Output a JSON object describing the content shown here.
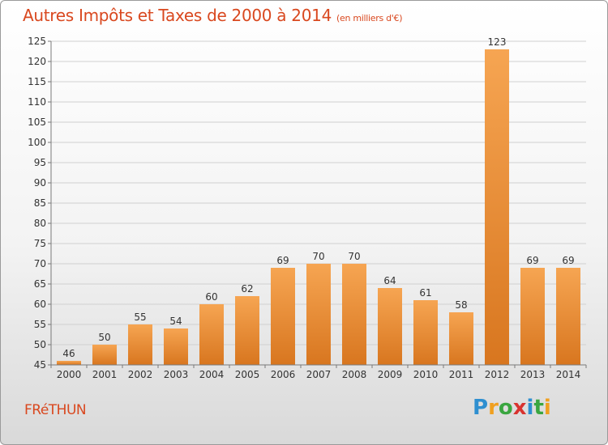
{
  "header": {
    "title": "Autres Impôts et Taxes de 2000 à 2014",
    "unit": "(en milliers d'€)"
  },
  "footer": {
    "town": "FRéTHUN",
    "logo_letters": [
      "P",
      "r",
      "o",
      "x",
      "i",
      "t",
      "i"
    ],
    "logo_colors": [
      "#2e8fd0",
      "#f0a020",
      "#3aa640",
      "#d8332f",
      "#2e8fd0",
      "#3aa640",
      "#f0a020"
    ]
  },
  "colors": {
    "title": "#d9481f",
    "bar_light": "#f6a552",
    "bar_dark": "#d8761f",
    "grid": "#d0d0d0",
    "axis": "#7a7a7a"
  },
  "chart_data": {
    "type": "bar",
    "title": "Autres Impôts et Taxes de 2000 à 2014",
    "subtitle": "(en milliers d'€)",
    "xlabel": "",
    "ylabel": "",
    "categories": [
      "2000",
      "2001",
      "2002",
      "2003",
      "2004",
      "2005",
      "2006",
      "2007",
      "2008",
      "2009",
      "2010",
      "2011",
      "2012",
      "2013",
      "2014"
    ],
    "values": [
      46,
      50,
      55,
      54,
      60,
      62,
      69,
      70,
      70,
      64,
      61,
      58,
      123,
      69,
      69
    ],
    "data_labels": [
      "46",
      "50",
      "55",
      "54",
      "60",
      "62",
      "69",
      "70",
      "70",
      "64",
      "61",
      "58",
      "123",
      "69",
      "69"
    ],
    "ylim": [
      45,
      125
    ],
    "yticks": [
      "45",
      "50",
      "55",
      "60",
      "65",
      "70",
      "75",
      "80",
      "85",
      "90",
      "95",
      "100",
      "105",
      "110",
      "115",
      "120",
      "125"
    ],
    "grid": true,
    "legend": "none"
  }
}
